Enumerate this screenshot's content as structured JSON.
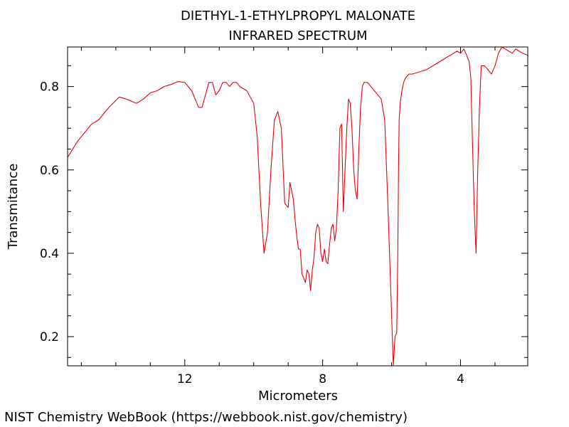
{
  "chart_data": {
    "type": "line",
    "title": [
      "DIETHYL-1-ETHYLPROPYL MALONATE",
      "INFRARED SPECTRUM"
    ],
    "xlabel": "Micrometers",
    "ylabel": "Transmitance",
    "x_reversed": true,
    "xlim": [
      15.4,
      2.05
    ],
    "ylim": [
      0.13,
      0.895
    ],
    "x_ticks": [
      12,
      8,
      4
    ],
    "y_ticks": [
      0.2,
      0.4,
      0.6,
      0.8
    ],
    "grid": false,
    "line_color": "#e8000b",
    "series": [
      {
        "x": [
          15.4,
          15.1,
          14.9,
          14.7,
          14.5,
          14.2,
          13.9,
          13.7,
          13.4,
          13.2,
          13.0,
          12.8,
          12.6,
          12.4,
          12.2,
          12.0,
          11.8,
          11.6,
          11.5,
          11.4,
          11.3,
          11.2,
          11.1,
          11.0,
          10.9,
          10.8,
          10.7,
          10.6,
          10.5,
          10.4,
          10.2,
          10.0,
          9.9,
          9.8,
          9.7,
          9.6,
          9.5,
          9.4,
          9.3,
          9.2,
          9.1,
          9.0,
          8.95,
          8.9,
          8.85,
          8.8,
          8.75,
          8.7,
          8.65,
          8.6,
          8.5,
          8.45,
          8.4,
          8.35,
          8.3,
          8.25,
          8.2,
          8.15,
          8.1,
          8.05,
          8.0,
          7.95,
          7.9,
          7.85,
          7.8,
          7.75,
          7.7,
          7.65,
          7.6,
          7.55,
          7.5,
          7.45,
          7.4,
          7.35,
          7.3,
          7.25,
          7.2,
          7.15,
          7.1,
          7.05,
          7.0,
          6.95,
          6.9,
          6.85,
          6.8,
          6.7,
          6.6,
          6.5,
          6.4,
          6.3,
          6.2,
          6.1,
          6.0,
          5.95,
          5.9,
          5.85,
          5.82,
          5.8,
          5.78,
          5.75,
          5.7,
          5.65,
          5.6,
          5.5,
          5.4,
          5.2,
          5.0,
          4.8,
          4.6,
          4.4,
          4.2,
          4.1,
          4.0,
          3.9,
          3.85,
          3.8,
          3.75,
          3.7,
          3.65,
          3.6,
          3.55,
          3.5,
          3.45,
          3.4,
          3.3,
          3.2,
          3.1,
          3.0,
          2.9,
          2.8,
          2.7,
          2.6,
          2.5,
          2.4,
          2.3,
          2.2,
          2.05
        ],
        "y": [
          0.63,
          0.67,
          0.69,
          0.71,
          0.72,
          0.75,
          0.775,
          0.77,
          0.76,
          0.77,
          0.785,
          0.79,
          0.8,
          0.805,
          0.812,
          0.81,
          0.79,
          0.75,
          0.75,
          0.78,
          0.81,
          0.81,
          0.78,
          0.79,
          0.81,
          0.81,
          0.8,
          0.81,
          0.81,
          0.8,
          0.79,
          0.76,
          0.68,
          0.52,
          0.4,
          0.45,
          0.6,
          0.72,
          0.74,
          0.7,
          0.52,
          0.51,
          0.57,
          0.55,
          0.53,
          0.48,
          0.44,
          0.41,
          0.41,
          0.35,
          0.33,
          0.36,
          0.35,
          0.31,
          0.36,
          0.39,
          0.45,
          0.47,
          0.46,
          0.4,
          0.38,
          0.41,
          0.38,
          0.375,
          0.42,
          0.46,
          0.47,
          0.43,
          0.46,
          0.55,
          0.7,
          0.71,
          0.5,
          0.6,
          0.7,
          0.77,
          0.76,
          0.7,
          0.6,
          0.55,
          0.53,
          0.65,
          0.75,
          0.8,
          0.81,
          0.81,
          0.8,
          0.79,
          0.78,
          0.77,
          0.72,
          0.5,
          0.25,
          0.13,
          0.2,
          0.21,
          0.4,
          0.6,
          0.72,
          0.76,
          0.79,
          0.81,
          0.82,
          0.83,
          0.83,
          0.835,
          0.84,
          0.85,
          0.86,
          0.87,
          0.88,
          0.885,
          0.88,
          0.89,
          0.88,
          0.87,
          0.86,
          0.82,
          0.65,
          0.5,
          0.4,
          0.6,
          0.75,
          0.85,
          0.85,
          0.84,
          0.83,
          0.85,
          0.88,
          0.895,
          0.89,
          0.885,
          0.88,
          0.89,
          0.885,
          0.88,
          0.875
        ]
      }
    ]
  },
  "credit": "NIST Chemistry WebBook (https://webbook.nist.gov/chemistry)"
}
